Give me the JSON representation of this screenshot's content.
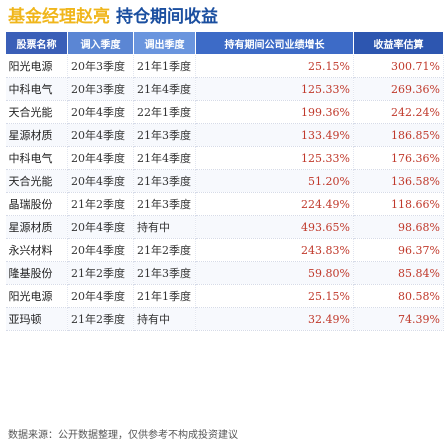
{
  "title": {
    "part1": "基金经理赵亮",
    "part2": "持仓期间收益"
  },
  "table": {
    "headers": {
      "name": "股票名称",
      "in": "调入季度",
      "out": "调出季度",
      "growth": "持有期间公司业绩增长",
      "ret": "收益率估算"
    },
    "rows": [
      {
        "name": "阳光电源",
        "in": "20年3季度",
        "out": "21年1季度",
        "growth": "25.15%",
        "ret": "300.71%"
      },
      {
        "name": "中科电气",
        "in": "20年3季度",
        "out": "21年4季度",
        "growth": "125.33%",
        "ret": "269.36%"
      },
      {
        "name": "天合光能",
        "in": "20年4季度",
        "out": "22年1季度",
        "growth": "199.36%",
        "ret": "242.24%"
      },
      {
        "name": "星源材质",
        "in": "20年4季度",
        "out": "21年3季度",
        "growth": "133.49%",
        "ret": "186.85%"
      },
      {
        "name": "中科电气",
        "in": "20年4季度",
        "out": "21年4季度",
        "growth": "125.33%",
        "ret": "176.36%"
      },
      {
        "name": "天合光能",
        "in": "20年4季度",
        "out": "21年3季度",
        "growth": "51.20%",
        "ret": "136.58%"
      },
      {
        "name": "晶瑞股份",
        "in": "21年2季度",
        "out": "21年3季度",
        "growth": "224.49%",
        "ret": "118.66%"
      },
      {
        "name": "星源材质",
        "in": "20年4季度",
        "out": "持有中",
        "growth": "493.65%",
        "ret": "98.68%"
      },
      {
        "name": "永兴材料",
        "in": "20年4季度",
        "out": "21年2季度",
        "growth": "243.83%",
        "ret": "96.37%"
      },
      {
        "name": "隆基股份",
        "in": "21年2季度",
        "out": "21年3季度",
        "growth": "59.80%",
        "ret": "85.84%"
      },
      {
        "name": "阳光电源",
        "in": "20年4季度",
        "out": "21年1季度",
        "growth": "25.15%",
        "ret": "80.58%"
      },
      {
        "name": "亚玛顿",
        "in": "21年2季度",
        "out": "持有中",
        "growth": "32.49%",
        "ret": "74.39%"
      }
    ]
  },
  "footer": {
    "text": "数据来源：公开数据整理，仅供参考不构成投资建议"
  }
}
